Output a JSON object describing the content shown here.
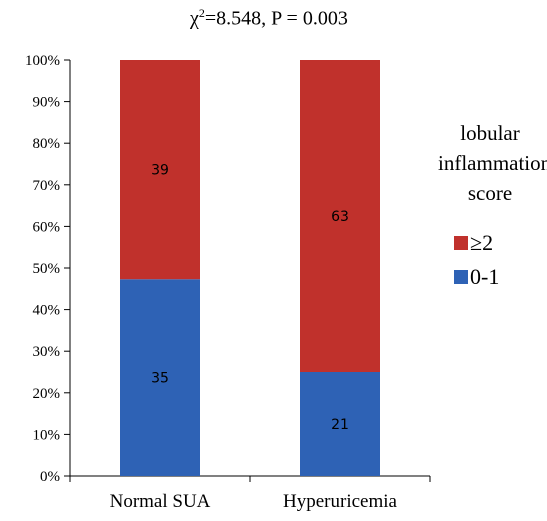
{
  "chart_data": {
    "type": "bar",
    "stacked": true,
    "title": {
      "symbol": "χ",
      "superscript": "2",
      "rest": "=8.548,  P = 0.003"
    },
    "categories": [
      "Normal SUA",
      "Hyperuricemia"
    ],
    "y_ticks": [
      "0%",
      "10%",
      "20%",
      "30%",
      "40%",
      "50%",
      "60%",
      "70%",
      "80%",
      "90%",
      "100%"
    ],
    "ylim": [
      0,
      100
    ],
    "series": [
      {
        "name": "0-1",
        "color": "#2E62B5",
        "values": [
          35,
          21
        ],
        "percents": [
          47.3,
          25.0
        ]
      },
      {
        "name": "≥2",
        "color": "#C0312C",
        "values": [
          39,
          63
        ],
        "percents": [
          52.7,
          75.0
        ]
      }
    ],
    "legend": {
      "title_lines": [
        "lobular",
        "inflammation",
        "score"
      ],
      "position": "right"
    }
  }
}
